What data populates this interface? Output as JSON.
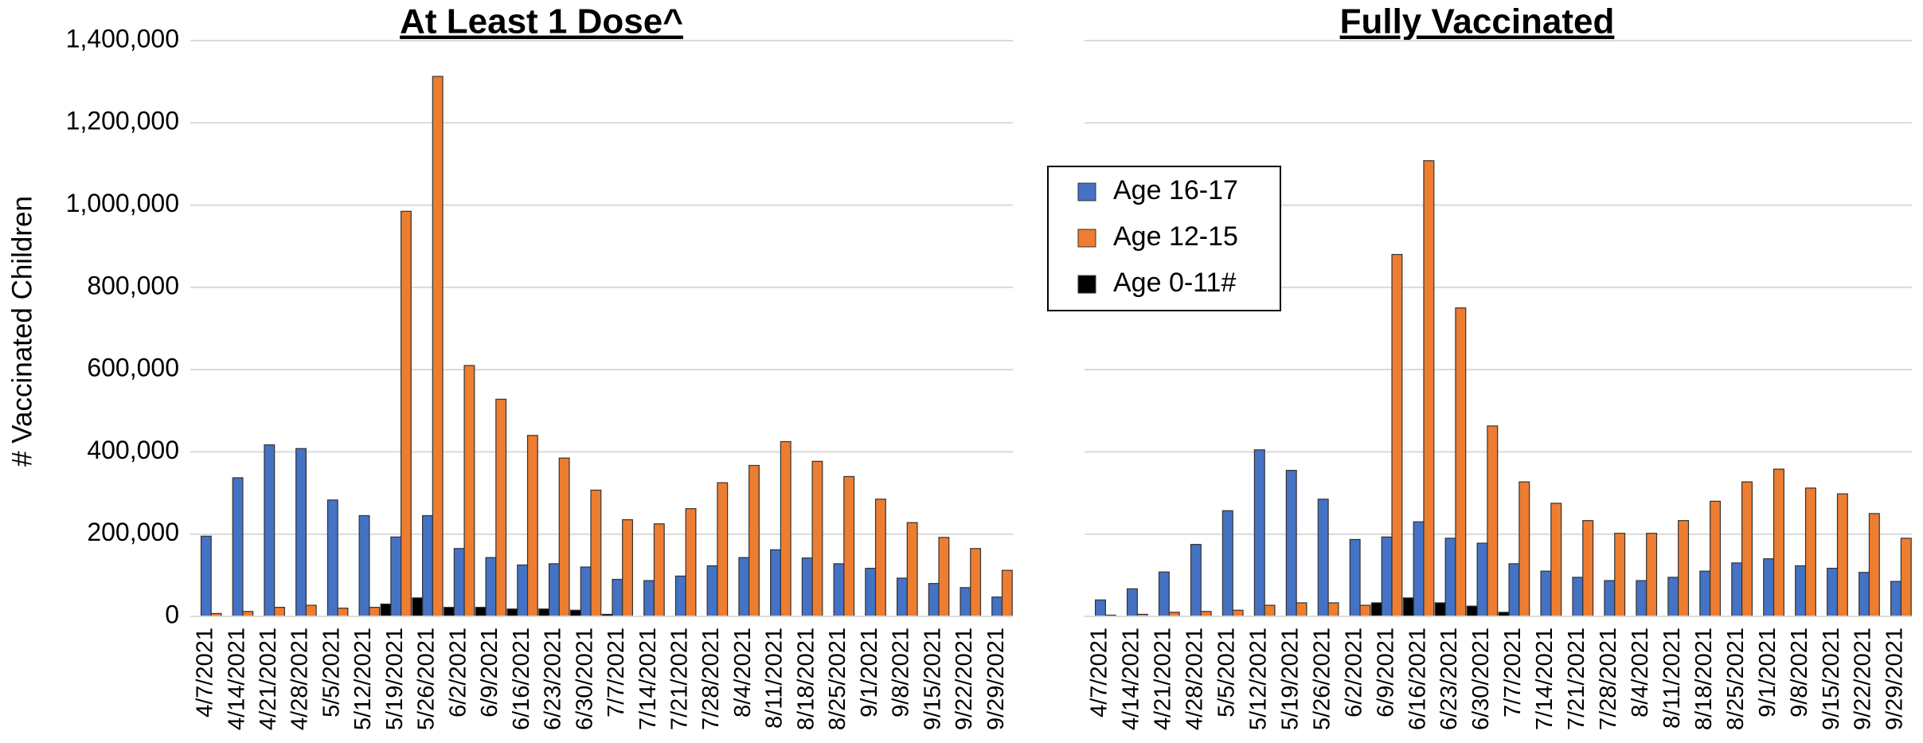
{
  "chart_data": [
    {
      "type": "bar",
      "title": "At Least 1 Dose^",
      "y_label": "# Vaccinated Children",
      "categories": [
        "4/7/2021",
        "4/14/2021",
        "4/21/2021",
        "4/28/2021",
        "5/5/2021",
        "5/12/2021",
        "5/19/2021",
        "5/26/2021",
        "6/2/2021",
        "6/9/2021",
        "6/16/2021",
        "6/23/2021",
        "6/30/2021",
        "7/7/2021",
        "7/14/2021",
        "7/21/2021",
        "7/28/2021",
        "8/4/2021",
        "8/11/2021",
        "8/18/2021",
        "8/25/2021",
        "9/1/2021",
        "9/8/2021",
        "9/15/2021",
        "9/22/2021",
        "9/29/2021"
      ],
      "series": [
        {
          "name": "Age 16-17",
          "color": "#4472c4",
          "values": [
            195000,
            337000,
            417000,
            408000,
            283000,
            245000,
            193000,
            245000,
            165000,
            143000,
            125000,
            128000,
            120000,
            90000,
            87000,
            98000,
            123000,
            143000,
            162000,
            142000,
            128000,
            117000,
            93000,
            80000,
            70000,
            47000
          ]
        },
        {
          "name": "Age 12-15",
          "color": "#ed7d31",
          "values": [
            7000,
            12000,
            22000,
            27000,
            20000,
            22000,
            985000,
            1313000,
            610000,
            528000,
            440000,
            385000,
            307000,
            235000,
            225000,
            262000,
            325000,
            367000,
            425000,
            377000,
            340000,
            285000,
            228000,
            192000,
            165000,
            112000
          ]
        },
        {
          "name": "Age 0-11#",
          "color": "#000000",
          "values": [
            0,
            0,
            0,
            0,
            0,
            0,
            30000,
            45000,
            22000,
            22000,
            18000,
            18000,
            15000,
            5000,
            0,
            0,
            0,
            0,
            0,
            0,
            0,
            0,
            0,
            0,
            0,
            0
          ]
        }
      ],
      "ylim": [
        0,
        1400000
      ],
      "yticks": [
        0,
        {
          "value": 200000,
          "label": "200,000"
        },
        {
          "value": 400000,
          "label": "400,000"
        },
        {
          "value": 600000,
          "label": "600,000"
        },
        {
          "value": 800000,
          "label": "800,000"
        },
        {
          "value": 1000000,
          "label": "1,000,000"
        },
        {
          "value": 1200000,
          "label": "1,200,000"
        },
        {
          "value": 1400000,
          "label": "1,400,000"
        }
      ],
      "grid": true,
      "tick_labels": true
    },
    {
      "type": "bar",
      "title": "Fully Vaccinated",
      "categories": [
        "4/7/2021",
        "4/14/2021",
        "4/21/2021",
        "4/28/2021",
        "5/5/2021",
        "5/12/2021",
        "5/19/2021",
        "5/26/2021",
        "6/2/2021",
        "6/9/2021",
        "6/16/2021",
        "6/23/2021",
        "6/30/2021",
        "7/7/2021",
        "7/14/2021",
        "7/21/2021",
        "7/28/2021",
        "8/4/2021",
        "8/11/2021",
        "8/18/2021",
        "8/25/2021",
        "9/1/2021",
        "9/8/2021",
        "9/15/2021",
        "9/22/2021",
        "9/29/2021"
      ],
      "series": [
        {
          "name": "Age 16-17",
          "color": "#4472c4",
          "values": [
            40000,
            67000,
            108000,
            175000,
            257000,
            405000,
            355000,
            285000,
            187000,
            193000,
            230000,
            190000,
            178000,
            128000,
            110000,
            95000,
            87000,
            87000,
            95000,
            110000,
            130000,
            140000,
            123000,
            117000,
            107000,
            85000
          ]
        },
        {
          "name": "Age 12-15",
          "color": "#ed7d31",
          "values": [
            3000,
            5000,
            10000,
            12000,
            15000,
            27000,
            33000,
            33000,
            27000,
            880000,
            1108000,
            750000,
            463000,
            327000,
            275000,
            233000,
            202000,
            202000,
            233000,
            280000,
            327000,
            358000,
            312000,
            298000,
            250000,
            190000
          ]
        },
        {
          "name": "Age 0-11#",
          "color": "#000000",
          "values": [
            0,
            0,
            0,
            0,
            0,
            0,
            0,
            0,
            0,
            33000,
            45000,
            33000,
            25000,
            10000,
            0,
            0,
            0,
            0,
            0,
            0,
            0,
            0,
            0,
            0,
            0,
            0
          ]
        }
      ],
      "ylim": [
        0,
        1400000
      ],
      "yticks": [
        0,
        200000,
        400000,
        600000,
        800000,
        1000000,
        1200000,
        1400000
      ],
      "grid": true,
      "tick_labels": false,
      "legend": "upper left"
    }
  ]
}
